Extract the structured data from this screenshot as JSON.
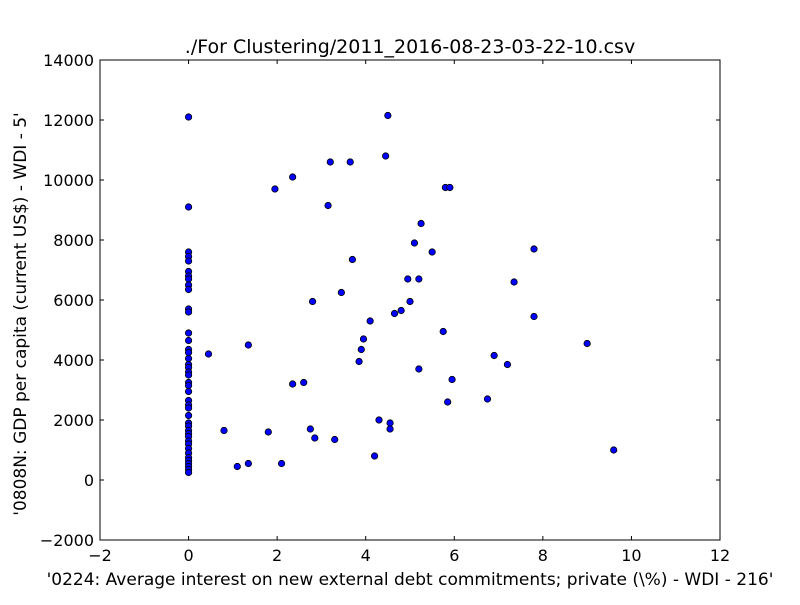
{
  "chart_data": {
    "type": "scatter",
    "title": "./For Clustering/2011_2016-08-23-03-22-10.csv",
    "xlabel": "'0224: Average interest on new external debt commitments; private  (\\%) - WDI - 216'",
    "ylabel": "'0808N: GDP per capita  (current US$) - WDI - 5'",
    "xlim": [
      -2,
      12
    ],
    "ylim": [
      -2000,
      14000
    ],
    "xticks": [
      -2,
      0,
      2,
      4,
      6,
      8,
      10,
      12
    ],
    "yticks": [
      -2000,
      0,
      2000,
      4000,
      6000,
      8000,
      10000,
      12000,
      14000
    ],
    "xtick_labels": [
      "−2",
      "0",
      "2",
      "4",
      "6",
      "8",
      "10",
      "12"
    ],
    "ytick_labels": [
      "−2000",
      "0",
      "2000",
      "4000",
      "6000",
      "8000",
      "10000",
      "12000",
      "14000"
    ],
    "grid": false,
    "marker_color": "#0000ff",
    "marker_edge_color": "#000000",
    "series": [
      {
        "points": [
          [
            0,
            12100
          ],
          [
            0,
            9100
          ],
          [
            0,
            7600
          ],
          [
            0,
            7450
          ],
          [
            0,
            7300
          ],
          [
            0,
            6950
          ],
          [
            0,
            6800
          ],
          [
            0,
            6700
          ],
          [
            0,
            6500
          ],
          [
            0,
            6350
          ],
          [
            0,
            5700
          ],
          [
            0,
            5600
          ],
          [
            0,
            4900
          ],
          [
            0,
            4650
          ],
          [
            0,
            4350
          ],
          [
            0,
            4250
          ],
          [
            0,
            4050
          ],
          [
            0,
            3850
          ],
          [
            0,
            3750
          ],
          [
            0,
            3600
          ],
          [
            0,
            3500
          ],
          [
            0,
            3250
          ],
          [
            0,
            3150
          ],
          [
            0,
            2950
          ],
          [
            0,
            2650
          ],
          [
            0,
            2500
          ],
          [
            0,
            2400
          ],
          [
            0,
            2150
          ],
          [
            0,
            1900
          ],
          [
            0,
            1800
          ],
          [
            0,
            1650
          ],
          [
            0,
            1550
          ],
          [
            0,
            1450
          ],
          [
            0,
            1300
          ],
          [
            0,
            1200
          ],
          [
            0,
            1050
          ],
          [
            0,
            900
          ],
          [
            0,
            750
          ],
          [
            0,
            650
          ],
          [
            0,
            550
          ],
          [
            0,
            450
          ],
          [
            0,
            350
          ],
          [
            0,
            250
          ],
          [
            0.45,
            4200
          ],
          [
            0.8,
            1650
          ],
          [
            1.1,
            450
          ],
          [
            1.35,
            4500
          ],
          [
            1.35,
            550
          ],
          [
            1.8,
            1600
          ],
          [
            1.95,
            9700
          ],
          [
            2.1,
            550
          ],
          [
            2.35,
            10100
          ],
          [
            2.35,
            3200
          ],
          [
            2.6,
            3250
          ],
          [
            2.75,
            1700
          ],
          [
            2.8,
            5950
          ],
          [
            2.85,
            1400
          ],
          [
            3.15,
            9150
          ],
          [
            3.2,
            10600
          ],
          [
            3.3,
            1350
          ],
          [
            3.45,
            6250
          ],
          [
            3.65,
            10600
          ],
          [
            3.7,
            7350
          ],
          [
            3.85,
            3950
          ],
          [
            3.9,
            4350
          ],
          [
            3.95,
            4700
          ],
          [
            4.1,
            5300
          ],
          [
            4.2,
            800
          ],
          [
            4.3,
            2000
          ],
          [
            4.45,
            10800
          ],
          [
            4.5,
            12150
          ],
          [
            4.55,
            1900
          ],
          [
            4.55,
            1700
          ],
          [
            4.65,
            5550
          ],
          [
            4.8,
            5650
          ],
          [
            4.95,
            6700
          ],
          [
            5.0,
            5950
          ],
          [
            5.1,
            7900
          ],
          [
            5.2,
            6700
          ],
          [
            5.2,
            3700
          ],
          [
            5.25,
            8550
          ],
          [
            5.5,
            7600
          ],
          [
            5.75,
            4950
          ],
          [
            5.8,
            9750
          ],
          [
            5.85,
            2600
          ],
          [
            5.9,
            9750
          ],
          [
            5.95,
            3350
          ],
          [
            6.75,
            2700
          ],
          [
            6.9,
            4150
          ],
          [
            7.2,
            3850
          ],
          [
            7.35,
            6600
          ],
          [
            7.8,
            7700
          ],
          [
            7.8,
            5450
          ],
          [
            9.0,
            4550
          ],
          [
            9.6,
            1000
          ]
        ]
      }
    ]
  }
}
